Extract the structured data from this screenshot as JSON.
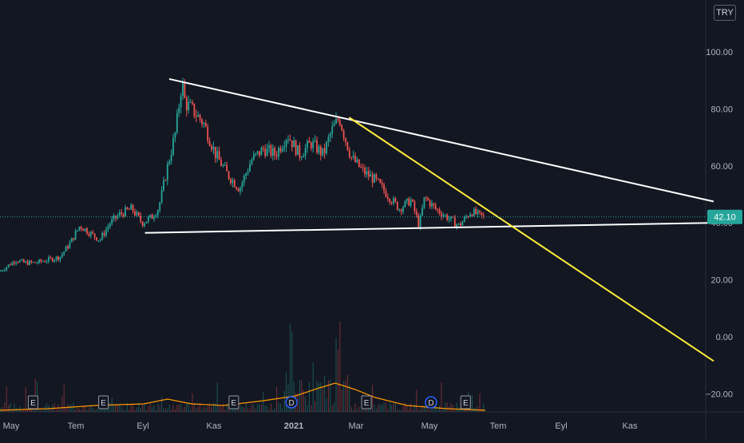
{
  "currency": "TRY",
  "chart_data": {
    "type": "candlestick",
    "y_axis": {
      "ticks": [
        "100.00",
        "80.00",
        "60.00",
        "40.00",
        "20.00",
        "0.00",
        "−20.00"
      ],
      "tick_values": [
        100,
        80,
        60,
        40,
        20,
        0,
        -20
      ],
      "range": [
        -27,
        120
      ]
    },
    "x_axis": {
      "labels": [
        "May",
        "Tem",
        "Eyl",
        "Kas",
        "2021",
        "Mar",
        "May",
        "Tem",
        "Eyl",
        "Kas"
      ],
      "bold": [
        "2021"
      ]
    },
    "last_price": {
      "value": 42.1,
      "label": "42.10",
      "color": "#26a69a"
    },
    "colors": {
      "up": "#26a69a",
      "down": "#ef5350",
      "background": "#131722",
      "ma": "#ff9800"
    },
    "price_series": {
      "months": [
        "2020-05",
        "2020-06",
        "2020-07",
        "2020-08",
        "2020-09",
        "2020-10",
        "2020-11",
        "2020-12",
        "2021-01",
        "2021-02",
        "2021-03",
        "2021-04",
        "2021-05",
        "2021-06"
      ],
      "x_keypoints": [
        0,
        20,
        30,
        45,
        75,
        88,
        100,
        115,
        125,
        138,
        150,
        165,
        178,
        190,
        198,
        201,
        210,
        220,
        228,
        232,
        240,
        255,
        270,
        285,
        300,
        315,
        330,
        345,
        360,
        375,
        390,
        405,
        415,
        425,
        432,
        440,
        455,
        470,
        485,
        500,
        515,
        525,
        532,
        545,
        560,
        575,
        590,
        605
      ],
      "close_keypoints": [
        23,
        27,
        26,
        26,
        28,
        33,
        39,
        36,
        34,
        40,
        43,
        45,
        40,
        42,
        45,
        48,
        60,
        72,
        90,
        82,
        80,
        75,
        64,
        57,
        52,
        62,
        66,
        64,
        71,
        64,
        68,
        64,
        72,
        77,
        70,
        63,
        58,
        55,
        50,
        45,
        48,
        39,
        49,
        45,
        42,
        39,
        44,
        42
      ]
    },
    "volume": {
      "note": "volume histogram shown as thin bars near bottom",
      "spikes_at": [
        "2021-01",
        "2021-02"
      ]
    },
    "trendlines": [
      {
        "name": "",
        "color": "#ffffff",
        "from": {
          "date": "2020-09-15",
          "value": 90.5
        },
        "to": {
          "date": "2021-12-31",
          "value": 47.5
        }
      },
      {
        "name": "",
        "color": "#ffffff",
        "from": {
          "date": "2020-08-25",
          "value": 36.5
        },
        "to": {
          "date": "2021-12-31",
          "value": 40
        }
      },
      {
        "name": "",
        "color": "#ffeb3b",
        "from": {
          "date": "2021-02-18",
          "value": 77
        },
        "to": {
          "date": "2021-12-31",
          "value": -8.5
        }
      }
    ],
    "event_markers": [
      {
        "label": "E",
        "date": "2020-05-20"
      },
      {
        "label": "E",
        "date": "2020-07-20"
      },
      {
        "label": "E",
        "date": "2020-11-10"
      },
      {
        "label": "D",
        "date": "2020-12-30",
        "color": "#2962ff"
      },
      {
        "label": "E",
        "date": "2021-03-05"
      },
      {
        "label": "D",
        "date": "2021-04-30",
        "color": "#2962ff"
      },
      {
        "label": "E",
        "date": "2021-05-30"
      }
    ],
    "grid": false
  }
}
